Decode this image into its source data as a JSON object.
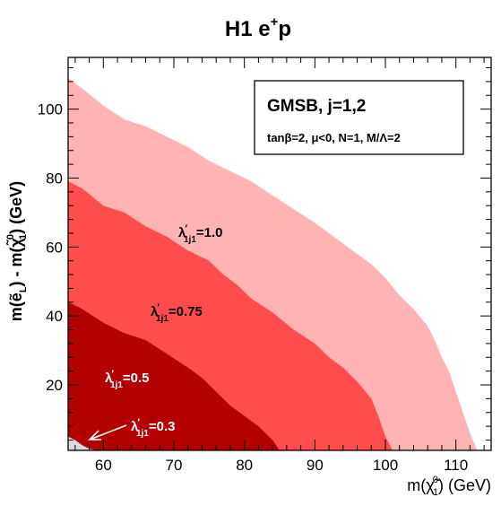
{
  "chart_data": {
    "type": "area",
    "title_main": "H1 e",
    "title_sup": "+",
    "title_end": "p",
    "xlabel": {
      "m": "m(",
      "chi": "χ̃",
      "chi_sup": "0",
      "chi_sub": "1",
      "unit": ") (GeV)"
    },
    "ylabel": {
      "part1": "m(",
      "e": "ẽ",
      "e_sub": "L",
      "part2": ") - m(",
      "chi": "χ̃",
      "chi_sup": "0",
      "chi_sub": "1",
      "unit": ") (GeV)"
    },
    "xlim": [
      55,
      115
    ],
    "ylim": [
      1,
      115
    ],
    "x_ticks": [
      60,
      70,
      80,
      90,
      100,
      110
    ],
    "y_ticks": [
      20,
      40,
      60,
      80,
      100
    ],
    "legend_box": {
      "line1": "GMSB, j=1,2",
      "line2": "tanβ=2, μ<0, N=1, M/Λ=2"
    },
    "series": [
      {
        "lambda": "1.0",
        "color": "#ffb3b3",
        "label_color": "#000000",
        "boundary": [
          [
            55,
            109
          ],
          [
            57,
            106
          ],
          [
            60,
            101
          ],
          [
            63,
            97
          ],
          [
            66,
            95
          ],
          [
            69,
            92
          ],
          [
            72,
            89
          ],
          [
            75,
            85
          ],
          [
            78,
            82
          ],
          [
            81,
            79
          ],
          [
            84,
            75
          ],
          [
            87,
            71
          ],
          [
            90,
            67
          ],
          [
            92,
            64
          ],
          [
            94,
            61
          ],
          [
            96,
            58
          ],
          [
            98,
            55
          ],
          [
            100,
            51
          ],
          [
            102,
            46
          ],
          [
            104,
            42
          ],
          [
            106,
            37
          ],
          [
            107,
            33
          ],
          [
            108,
            28
          ],
          [
            109,
            24
          ],
          [
            110,
            18
          ],
          [
            111,
            12
          ],
          [
            112,
            6
          ],
          [
            113,
            1
          ]
        ]
      },
      {
        "lambda": "0.75",
        "color": "#ff4d4d",
        "label_color": "#000000",
        "boundary": [
          [
            55,
            79
          ],
          [
            57,
            77
          ],
          [
            60,
            72
          ],
          [
            63,
            70
          ],
          [
            66,
            66
          ],
          [
            69,
            63
          ],
          [
            72,
            59
          ],
          [
            75,
            56
          ],
          [
            77,
            52
          ],
          [
            79,
            49
          ],
          [
            81,
            45
          ],
          [
            84,
            41
          ],
          [
            87,
            36
          ],
          [
            90,
            32
          ],
          [
            92,
            28
          ],
          [
            94,
            25
          ],
          [
            96,
            21
          ],
          [
            98,
            16
          ],
          [
            99,
            11
          ],
          [
            100,
            5
          ],
          [
            101,
            1
          ]
        ]
      },
      {
        "lambda": "0.5",
        "color": "#b30000",
        "label_color": "#ffffff",
        "boundary": [
          [
            55,
            44
          ],
          [
            57,
            42
          ],
          [
            60,
            38
          ],
          [
            63,
            35
          ],
          [
            66,
            33
          ],
          [
            69,
            29
          ],
          [
            72,
            25
          ],
          [
            74,
            22
          ],
          [
            76,
            18
          ],
          [
            78,
            14
          ],
          [
            80,
            11
          ],
          [
            82,
            8
          ],
          [
            84,
            4
          ],
          [
            85,
            1
          ]
        ]
      },
      {
        "lambda": "0.3",
        "color": "#d9d9d9",
        "label_color": "#ffffff",
        "boundary": [
          [
            55,
            5
          ],
          [
            56,
            4
          ],
          [
            57,
            2.5
          ],
          [
            58,
            1.5
          ],
          [
            59,
            1
          ]
        ]
      }
    ],
    "series_labels": [
      {
        "prefix": "λ",
        "prime": "′",
        "sub": "1j1",
        "eq": "=1.0"
      },
      {
        "prefix": "λ",
        "prime": "′",
        "sub": "1j1",
        "eq": "=0.75"
      },
      {
        "prefix": "λ",
        "prime": "′",
        "sub": "1j1",
        "eq": "=0.5"
      },
      {
        "prefix": "λ",
        "prime": "′",
        "sub": "1j1",
        "eq": "=0.3"
      }
    ]
  }
}
